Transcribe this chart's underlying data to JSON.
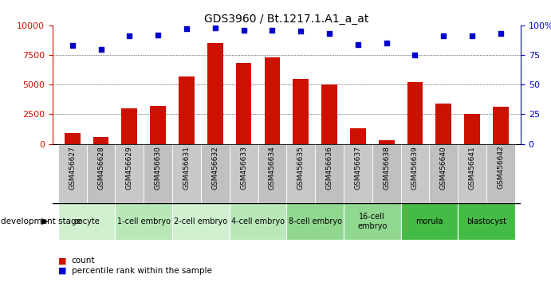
{
  "title": "GDS3960 / Bt.1217.1.A1_a_at",
  "samples": [
    "GSM456627",
    "GSM456628",
    "GSM456629",
    "GSM456630",
    "GSM456631",
    "GSM456632",
    "GSM456633",
    "GSM456634",
    "GSM456635",
    "GSM456636",
    "GSM456637",
    "GSM456638",
    "GSM456639",
    "GSM456640",
    "GSM456641",
    "GSM456642"
  ],
  "counts": [
    900,
    600,
    3000,
    3200,
    5700,
    8500,
    6800,
    7300,
    5500,
    5000,
    1300,
    300,
    5200,
    3400,
    2500,
    3100
  ],
  "percentiles": [
    83,
    80,
    91,
    92,
    97,
    98,
    96,
    96,
    95,
    93,
    84,
    85,
    75,
    91,
    91,
    93
  ],
  "stages": [
    {
      "label": "oocyte",
      "start": 0,
      "end": 2,
      "color": "#d0f0d0"
    },
    {
      "label": "1-cell embryo",
      "start": 2,
      "end": 4,
      "color": "#b8e8b8"
    },
    {
      "label": "2-cell embryo",
      "start": 4,
      "end": 6,
      "color": "#d0f0d0"
    },
    {
      "label": "4-cell embryo",
      "start": 6,
      "end": 8,
      "color": "#b8e8b8"
    },
    {
      "label": "8-cell embryo",
      "start": 8,
      "end": 10,
      "color": "#90d890"
    },
    {
      "label": "16-cell\nembryo",
      "start": 10,
      "end": 12,
      "color": "#90d890"
    },
    {
      "label": "morula",
      "start": 12,
      "end": 14,
      "color": "#44bb44"
    },
    {
      "label": "blastocyst",
      "start": 14,
      "end": 16,
      "color": "#44bb44"
    }
  ],
  "bar_color": "#cc1100",
  "dot_color": "#0000cc",
  "left_axis_color": "#cc1100",
  "right_axis_color": "#0000cc",
  "ylim_left": [
    0,
    10000
  ],
  "ylim_right": [
    0,
    100
  ],
  "yticks_left": [
    0,
    2500,
    5000,
    7500,
    10000
  ],
  "yticks_right": [
    0,
    25,
    50,
    75,
    100
  ],
  "background_color": "#ffffff",
  "sample_row_color": "#c8c8c8",
  "dev_stage_label": "development stage",
  "legend_count_label": "count",
  "legend_pct_label": "percentile rank within the sample"
}
